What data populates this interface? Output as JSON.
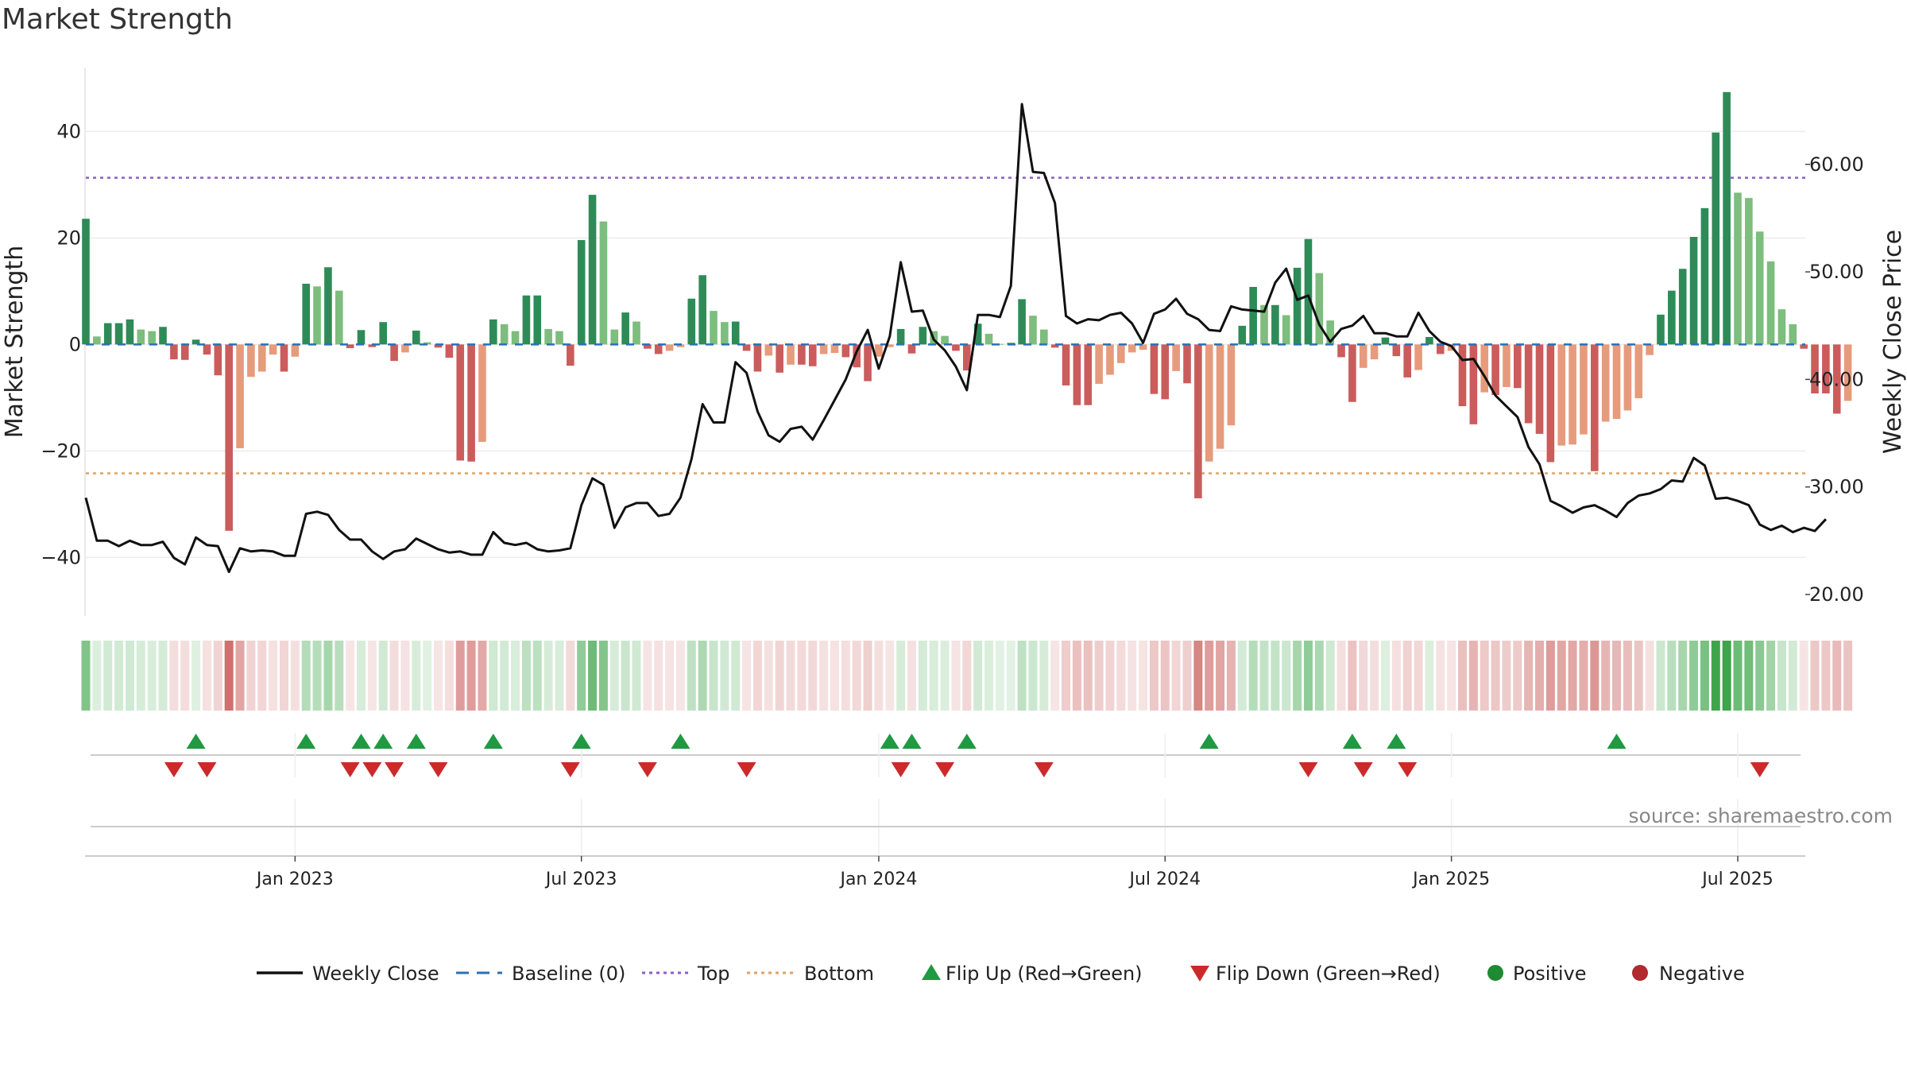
{
  "title": "Market Strength",
  "source": "source: sharemaestro.com",
  "chart_data": {
    "type": "bar+line",
    "title": "Market Strength",
    "ylabel_left": "Market Strength",
    "ylabel_right": "Weekly Close Price",
    "ylim_left": [
      -51,
      52
    ],
    "ylim_right": [
      18,
      69
    ],
    "yticks_left": [
      40,
      20,
      0,
      -20,
      -40
    ],
    "ytick_labels_left": [
      "40",
      "20",
      "0",
      "−20",
      "−40"
    ],
    "yticks_right": [
      60,
      50,
      40,
      30,
      20
    ],
    "ytick_labels_right": [
      "60.00",
      "50.00",
      "40.00",
      "30.00",
      "20.00"
    ],
    "top_threshold": 31.3,
    "bottom_threshold": -24.2,
    "xtick_weeks": [
      19,
      45,
      72,
      98,
      124,
      150
    ],
    "xtick_labels": [
      "Jan 2023",
      "Jul 2023",
      "Jan 2024",
      "Jul 2024",
      "Jan 2025",
      "Jul 2025"
    ],
    "strength": [
      23.6,
      1.5,
      4.0,
      4.0,
      4.7,
      2.8,
      2.5,
      3.3,
      -2.8,
      -2.9,
      0.9,
      -1.9,
      -5.8,
      -35.0,
      -19.5,
      -6.1,
      -5.1,
      -1.9,
      -5.1,
      -2.3,
      11.4,
      10.9,
      14.5,
      10.1,
      -0.7,
      2.7,
      -0.5,
      4.2,
      -3.1,
      -1.5,
      2.6,
      0.4,
      -0.6,
      -2.5,
      -21.8,
      -22.0,
      -18.3,
      4.7,
      3.8,
      2.5,
      9.2,
      9.2,
      2.9,
      2.5,
      -4.0,
      19.6,
      28.1,
      23.1,
      2.8,
      6.0,
      4.3,
      -0.8,
      -1.8,
      -1.2,
      -0.5,
      8.6,
      13.0,
      6.3,
      4.2,
      4.3,
      -1.2,
      -5.1,
      -2.1,
      -5.3,
      -3.8,
      -3.8,
      -4.1,
      -1.8,
      -1.6,
      -2.4,
      -4.3,
      -6.9,
      -2.3,
      -0.5,
      2.9,
      -1.7,
      3.3,
      2.5,
      1.6,
      -1.2,
      -4.9,
      3.9,
      2.0,
      0.1,
      0.3,
      8.5,
      5.4,
      2.8,
      -0.6,
      -7.7,
      -11.4,
      -11.4,
      -7.4,
      -5.7,
      -3.5,
      -1.5,
      -1.0,
      -9.3,
      -10.3,
      -5.0,
      -7.3,
      -28.9,
      -22.0,
      -19.6,
      -15.2,
      3.5,
      10.8,
      7.4,
      7.4,
      5.5,
      14.4,
      19.8,
      13.4,
      4.5,
      -2.4,
      -10.8,
      -4.4,
      -2.8,
      1.3,
      -2.2,
      -6.2,
      -4.8,
      1.4,
      -1.8,
      -1.2,
      -11.6,
      -15.0,
      -9.0,
      -9.5,
      -8.0,
      -8.2,
      -14.8,
      -16.8,
      -22.1,
      -19.0,
      -18.8,
      -16.9,
      -23.8,
      -14.5,
      -14.0,
      -12.4,
      -10.1,
      -2.0,
      5.6,
      10.1,
      14.2,
      20.2,
      25.6,
      39.8,
      47.4,
      28.5,
      27.5,
      21.2,
      15.6,
      6.6,
      3.8,
      -0.8,
      -9.2,
      -9.2,
      -13.0,
      -10.6
    ],
    "weekly_close": [
      29.0,
      25.0,
      25.0,
      24.5,
      25.0,
      24.6,
      24.6,
      24.9,
      23.4,
      22.8,
      25.3,
      24.6,
      24.5,
      22.1,
      24.3,
      24.0,
      24.1,
      24.0,
      23.6,
      23.6,
      27.5,
      27.7,
      27.4,
      26.0,
      25.1,
      25.1,
      24.0,
      23.3,
      24.0,
      24.2,
      25.2,
      24.7,
      24.2,
      23.9,
      24.0,
      23.7,
      23.7,
      25.8,
      24.8,
      24.6,
      24.8,
      24.2,
      24.0,
      24.1,
      24.3,
      28.3,
      30.8,
      30.2,
      26.2,
      28.1,
      28.5,
      28.5,
      27.3,
      27.5,
      29.0,
      32.6,
      37.7,
      36.0,
      36.0,
      41.6,
      40.6,
      37.0,
      34.8,
      34.2,
      35.4,
      35.6,
      34.4,
      36.2,
      38.1,
      40.0,
      42.6,
      44.6,
      41.0,
      44.0,
      50.9,
      46.3,
      46.4,
      43.7,
      42.7,
      41.2,
      39.0,
      46.0,
      46.0,
      45.8,
      48.7,
      65.6,
      59.3,
      59.2,
      56.4,
      45.9,
      45.2,
      45.6,
      45.5,
      46.0,
      46.2,
      45.2,
      43.4,
      46.1,
      46.5,
      47.5,
      46.1,
      45.6,
      44.6,
      44.5,
      46.8,
      46.5,
      46.4,
      46.3,
      49.0,
      50.3,
      47.4,
      47.8,
      45.1,
      43.5,
      44.7,
      45.0,
      45.9,
      44.3,
      44.3,
      44.0,
      44.0,
      46.2,
      44.5,
      43.5,
      43.1,
      41.8,
      41.9,
      40.3,
      38.5,
      37.5,
      36.5,
      33.7,
      32.1,
      28.7,
      28.2,
      27.6,
      28.1,
      28.3,
      27.8,
      27.2,
      28.5,
      29.2,
      29.4,
      29.8,
      30.6,
      30.5,
      32.7,
      32.0,
      28.9,
      29.0,
      28.7,
      28.3,
      26.5,
      26.0,
      26.4,
      25.8,
      26.2,
      25.9,
      27.0
    ],
    "flip_up_weeks": [
      10,
      20,
      25,
      27,
      30,
      37,
      45,
      54,
      73,
      75,
      80,
      102,
      115,
      119,
      139
    ],
    "flip_down_weeks": [
      8,
      11,
      24,
      26,
      28,
      32,
      44,
      51,
      60,
      74,
      78,
      87,
      111,
      116,
      120,
      152
    ],
    "legend": [
      {
        "label": "Weekly Close",
        "kind": "line",
        "color": "#111111"
      },
      {
        "label": "Baseline (0)",
        "kind": "dashed",
        "color": "#2b6fb5"
      },
      {
        "label": "Top",
        "kind": "dotted",
        "color": "#8a5fc5"
      },
      {
        "label": "Bottom",
        "kind": "dotted",
        "color": "#e0a264"
      },
      {
        "label": "Flip Up (Red→Green)",
        "kind": "triangle-up",
        "color": "#1e9a42"
      },
      {
        "label": "Flip Down (Green→Red)",
        "kind": "triangle-down",
        "color": "#cc2a2a"
      },
      {
        "label": "Positive",
        "kind": "circle",
        "color": "#1f8a32"
      },
      {
        "label": "Negative",
        "kind": "circle",
        "color": "#b02a30"
      }
    ]
  },
  "colors": {
    "pos_strong": "#2e8b57",
    "pos_light": "#7dbd7d",
    "neg_strong": "#cb5c5c",
    "neg_light": "#e69b7c",
    "line": "#111111",
    "grid": "#ececec",
    "top": "#8a5fc5",
    "bottom": "#e0a264",
    "baseline": "#2b6fb5",
    "flip_up": "#1e9a42",
    "flip_down": "#cc2a2a"
  }
}
